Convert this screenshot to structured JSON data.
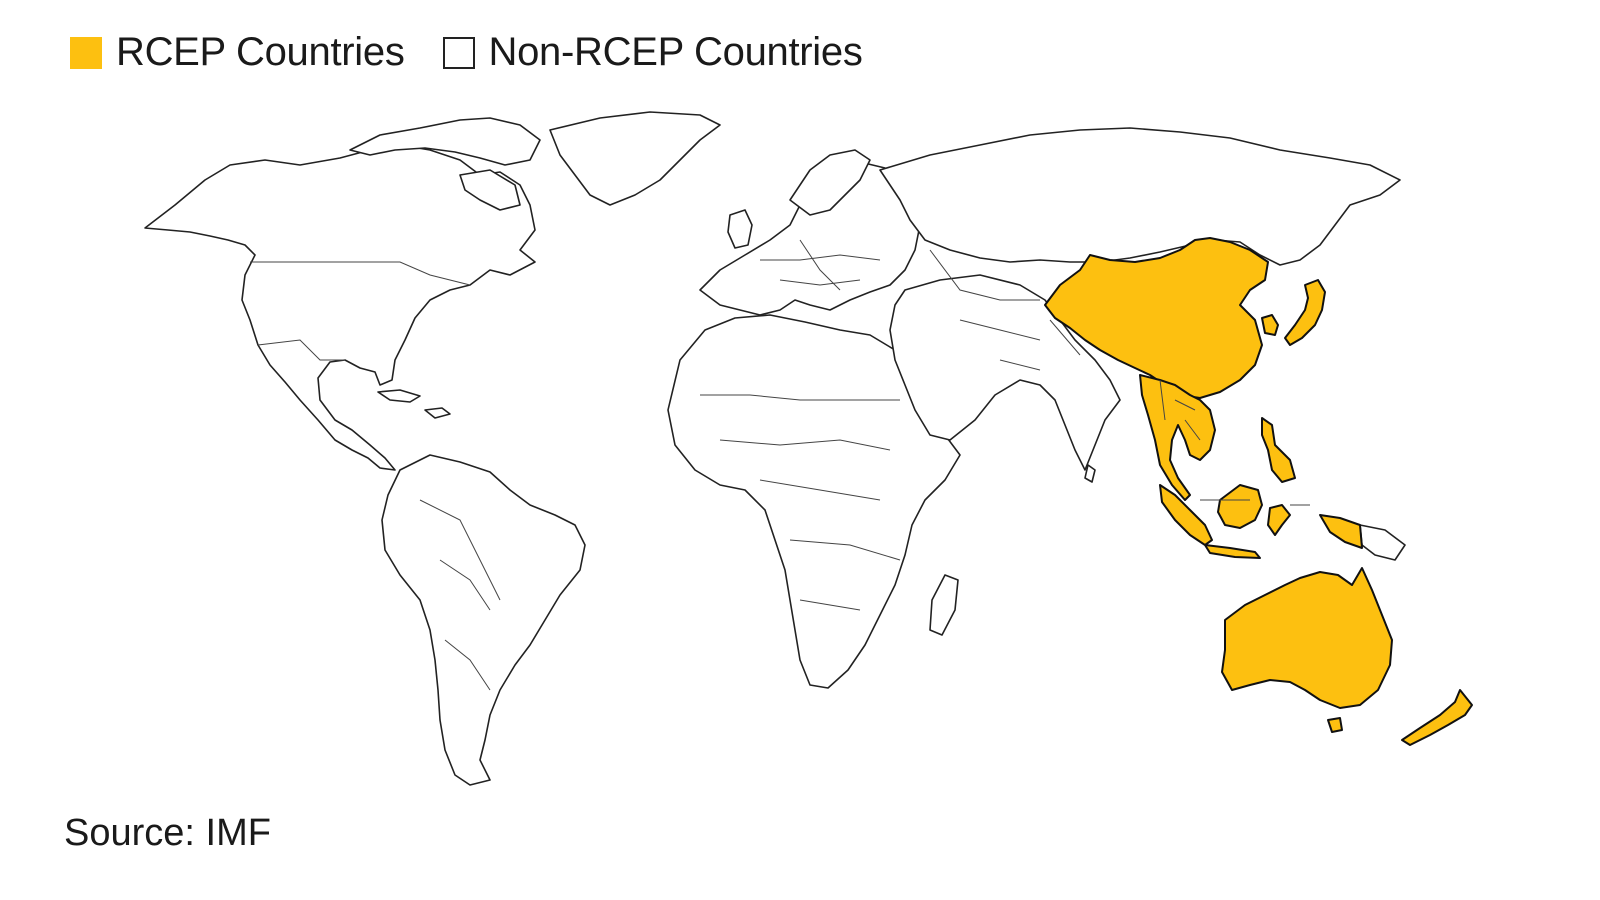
{
  "legend": {
    "rcep_label": "RCEP Countries",
    "non_rcep_label": "Non-RCEP Countries"
  },
  "colors": {
    "rcep": "#FDC010",
    "non_rcep": "#FFFFFF",
    "outline": "#222222"
  },
  "source": "Source: IMF",
  "regions": {
    "rcep": [
      "China",
      "Japan",
      "South Korea",
      "Vietnam",
      "Laos",
      "Cambodia",
      "Thailand",
      "Myanmar",
      "Malaysia",
      "Singapore",
      "Indonesia",
      "Philippines",
      "Brunei",
      "Australia",
      "New Zealand"
    ]
  }
}
